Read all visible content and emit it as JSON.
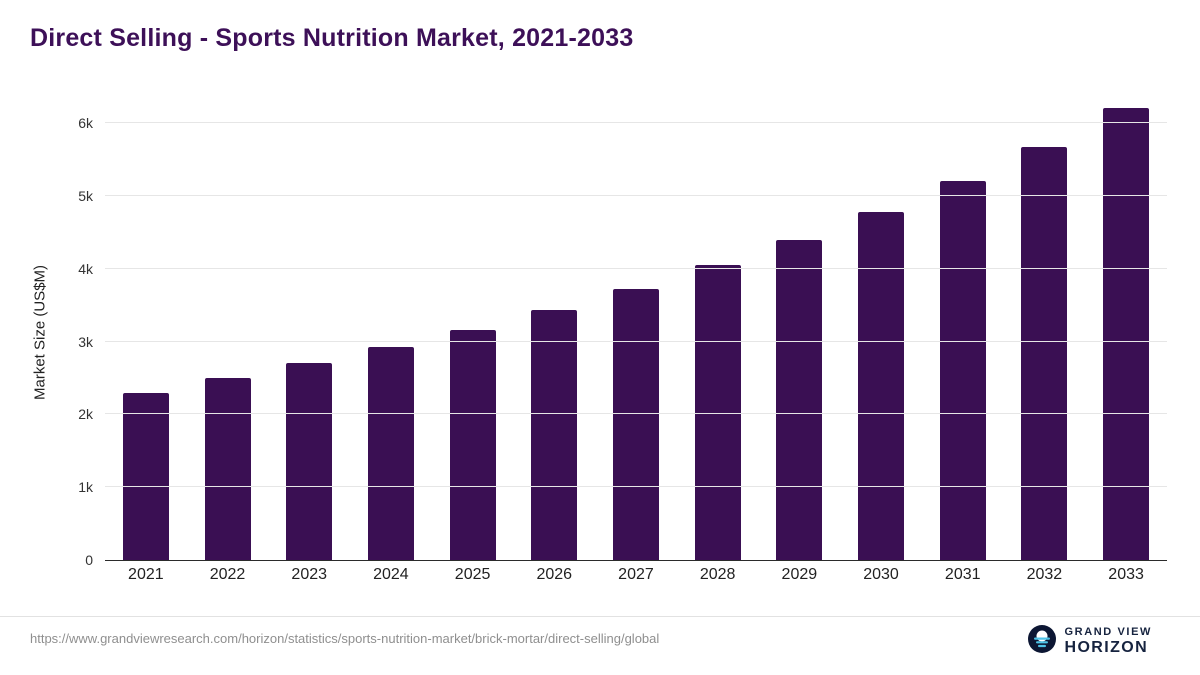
{
  "title": "Direct Selling - Sports Nutrition Market, 2021-2033",
  "footer": {
    "source_url": "https://www.grandviewresearch.com/horizon/statistics/sports-nutrition-market/brick-mortar/direct-selling/global",
    "logo_text_top": "GRAND VIEW",
    "logo_text_bottom": "HORIZON"
  },
  "colors": {
    "bar": "#3a0f53",
    "title": "#3d1058",
    "gridline": "#e6e6e6",
    "axis_text": "#222222"
  },
  "chart_data": {
    "type": "bar",
    "title": "Direct Selling - Sports Nutrition Market, 2021-2033",
    "categories": [
      "2021",
      "2022",
      "2023",
      "2024",
      "2025",
      "2026",
      "2027",
      "2028",
      "2029",
      "2030",
      "2031",
      "2032",
      "2033"
    ],
    "values": [
      2300,
      2500,
      2700,
      2930,
      3160,
      3430,
      3720,
      4050,
      4390,
      4780,
      5210,
      5680,
      6210
    ],
    "xlabel": "",
    "ylabel": "Market Size (US$M)",
    "ylim": [
      0,
      6250
    ],
    "yticks": [
      0,
      1000,
      2000,
      3000,
      4000,
      5000,
      6000
    ],
    "ytick_labels": [
      "0",
      "1k",
      "2k",
      "3k",
      "4k",
      "5k",
      "6k"
    ],
    "grid": true,
    "legend": false
  }
}
